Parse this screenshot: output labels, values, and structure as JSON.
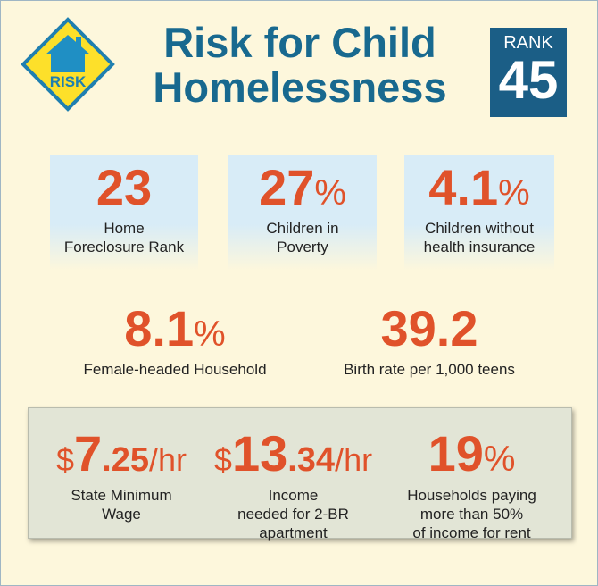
{
  "header": {
    "badge": "RISK",
    "title": "Risk for Child Homelessness",
    "rank_label": "RANK",
    "rank": "45"
  },
  "stats": [
    {
      "value": "23",
      "unit": "",
      "label": "Home\nForeclosure Rank"
    },
    {
      "value": "27",
      "unit": "%",
      "label": "Children in\nPoverty"
    },
    {
      "value": "4.1",
      "unit": "%",
      "label": "Children without\nhealth insurance"
    },
    {
      "value": "8.1",
      "unit": "%",
      "label": "Female-headed Household"
    },
    {
      "value": "39.2",
      "unit": "",
      "label": "Birth rate per 1,000 teens"
    }
  ],
  "housing": [
    {
      "prefix": "$",
      "whole": "7",
      "fraction": ".25",
      "suffix": "/hr",
      "label": "State Minimum\nWage"
    },
    {
      "prefix": "$",
      "whole": "13",
      "fraction": ".34",
      "suffix": "/hr",
      "label": "Income\nneeded for 2-BR\napartment"
    },
    {
      "prefix": "",
      "whole": "19",
      "fraction": "",
      "suffix": "%",
      "label": "Households paying\nmore than 50%\nof income for rent"
    }
  ]
}
